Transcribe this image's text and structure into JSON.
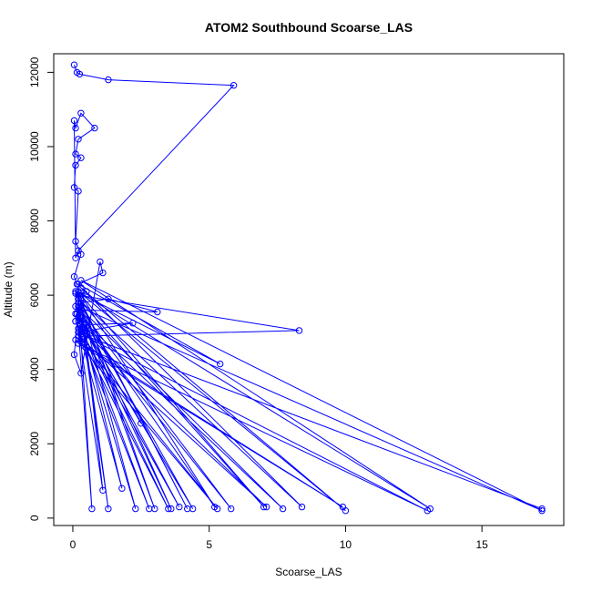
{
  "chart_data": {
    "type": "line",
    "title": "ATOM2 Southbound Scoarse_LAS",
    "xlabel": "Scoarse_LAS",
    "ylabel": "Altitude (m)",
    "xlim": [
      -0.7,
      18.0
    ],
    "ylim": [
      -200,
      12500
    ],
    "x_ticks": [
      0,
      5,
      10,
      15
    ],
    "y_ticks": [
      0,
      2000,
      4000,
      6000,
      8000,
      10000,
      12000
    ],
    "grid": false,
    "series_color": "#0000ff",
    "marker": "open-circle",
    "series": [
      {
        "points": [
          [
            0.05,
            12200
          ],
          [
            0.15,
            12000
          ],
          [
            0.25,
            11950
          ],
          [
            1.3,
            11800
          ],
          [
            5.9,
            11650
          ],
          [
            0.2,
            7200
          ],
          [
            0.1,
            7000
          ],
          [
            0.05,
            10700
          ],
          [
            0.1,
            10500
          ],
          [
            0.3,
            10900
          ],
          [
            0.8,
            10500
          ],
          [
            0.2,
            10200
          ],
          [
            0.1,
            9800
          ],
          [
            0.3,
            9700
          ],
          [
            0.1,
            9500
          ],
          [
            0.05,
            8900
          ],
          [
            0.2,
            8800
          ],
          [
            0.1,
            7450
          ],
          [
            0.3,
            7100
          ],
          [
            0.05,
            6500
          ],
          [
            0.15,
            6300
          ],
          [
            0.3,
            6200
          ],
          [
            0.5,
            6100
          ],
          [
            0.2,
            6000
          ],
          [
            8.3,
            5050
          ],
          [
            0.4,
            4900
          ],
          [
            0.1,
            5300
          ],
          [
            0.3,
            5800
          ],
          [
            1.3,
            5900
          ],
          [
            3.1,
            5550
          ],
          [
            0.2,
            5600
          ],
          [
            0.05,
            4400
          ],
          [
            0.3,
            3900
          ],
          [
            1.0,
            6900
          ],
          [
            1.1,
            6600
          ],
          [
            0.2,
            6300
          ],
          [
            5.4,
            4150
          ],
          [
            0.1,
            6100
          ],
          [
            4.2,
            250
          ],
          [
            0.1,
            6050
          ],
          [
            0.7,
            250
          ],
          [
            0.2,
            5900
          ],
          [
            1.3,
            250
          ],
          [
            0.3,
            5700
          ],
          [
            2.3,
            250
          ],
          [
            0.15,
            5500
          ],
          [
            2.5,
            2550
          ],
          [
            0.3,
            5300
          ],
          [
            1.8,
            800
          ],
          [
            0.2,
            5100
          ],
          [
            1.1,
            750
          ],
          [
            0.3,
            5900
          ],
          [
            3.0,
            250
          ],
          [
            0.2,
            5800
          ],
          [
            3.6,
            250
          ],
          [
            0.1,
            5700
          ],
          [
            5.2,
            300
          ],
          [
            0.3,
            6000
          ],
          [
            7.0,
            300
          ],
          [
            0.2,
            5900
          ],
          [
            8.4,
            300
          ],
          [
            0.3,
            6200
          ],
          [
            10.0,
            200
          ],
          [
            0.2,
            6100
          ],
          [
            13.1,
            250
          ],
          [
            0.3,
            6400
          ],
          [
            17.2,
            200
          ],
          [
            0.2,
            5700
          ],
          [
            7.7,
            250
          ],
          [
            0.1,
            5500
          ],
          [
            5.8,
            250
          ],
          [
            0.3,
            5600
          ],
          [
            4.4,
            250
          ],
          [
            0.2,
            5400
          ],
          [
            3.9,
            300
          ],
          [
            0.1,
            5300
          ],
          [
            2.8,
            250
          ],
          [
            0.3,
            5200
          ],
          [
            2.2,
            5250
          ],
          [
            0.2,
            5000
          ],
          [
            3.5,
            250
          ],
          [
            0.3,
            5100
          ],
          [
            7.1,
            300
          ],
          [
            0.2,
            4900
          ],
          [
            5.3,
            250
          ],
          [
            0.1,
            4800
          ],
          [
            9.9,
            300
          ],
          [
            0.2,
            4700
          ],
          [
            13.0,
            200
          ],
          [
            0.3,
            4950
          ],
          [
            17.2,
            250
          ]
        ]
      }
    ]
  }
}
